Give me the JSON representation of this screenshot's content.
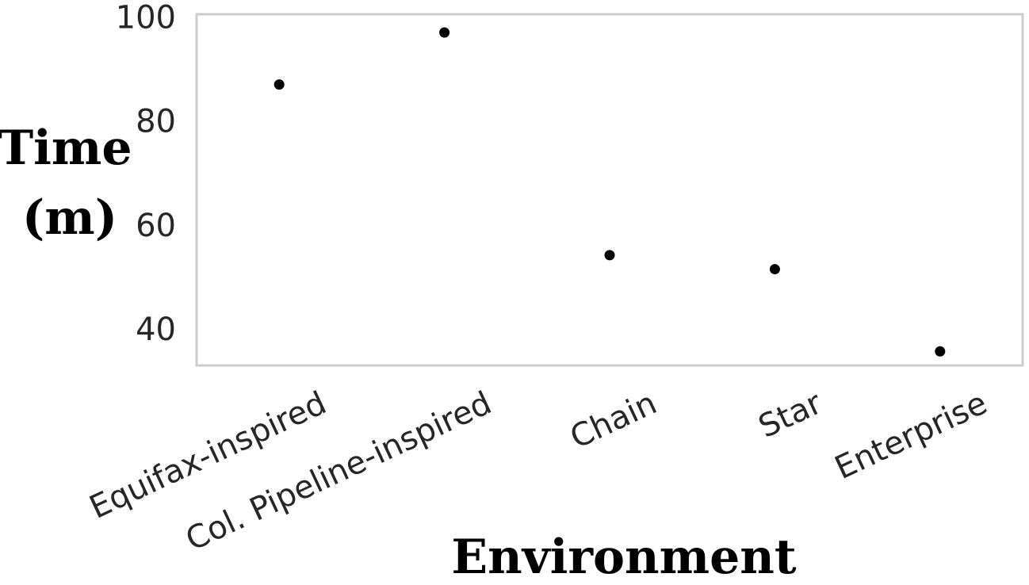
{
  "chart_data": {
    "type": "scatter",
    "title": "",
    "xlabel": "Environment",
    "ylabel_lines": [
      "Time",
      "(m)"
    ],
    "categories": [
      "Equifax-inspired",
      "Col. Pipeline-inspired",
      "Chain",
      "Star",
      "Enterprise"
    ],
    "values": [
      87,
      97,
      54.2,
      51.5,
      35.7
    ],
    "yticks": [
      40,
      60,
      80,
      100
    ],
    "ylim": [
      33,
      100.5
    ],
    "grid": false,
    "colors": {
      "marker": "#000000",
      "frame": "#cccccc",
      "tick_text": "#262626"
    }
  }
}
